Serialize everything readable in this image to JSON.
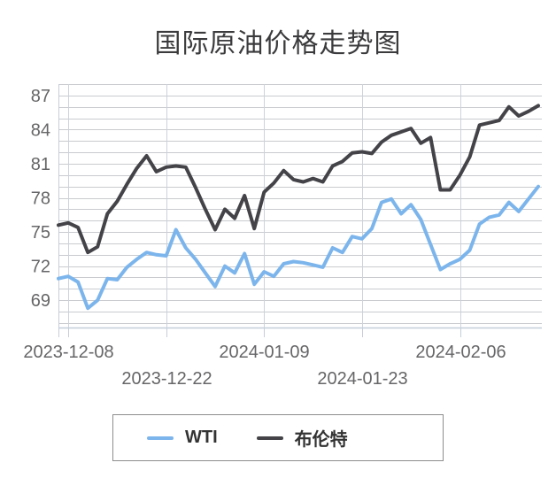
{
  "title": "国际原油价格走势图",
  "chart_data": {
    "type": "line",
    "title": "国际原油价格走势图",
    "x_dates": [
      "2023-12-07",
      "2023-12-08",
      "2023-12-11",
      "2023-12-12",
      "2023-12-13",
      "2023-12-14",
      "2023-12-15",
      "2023-12-18",
      "2023-12-19",
      "2023-12-20",
      "2023-12-21",
      "2023-12-22",
      "2023-12-26",
      "2023-12-27",
      "2023-12-28",
      "2023-12-29",
      "2024-01-02",
      "2024-01-03",
      "2024-01-04",
      "2024-01-05",
      "2024-01-08",
      "2024-01-09",
      "2024-01-10",
      "2024-01-11",
      "2024-01-12",
      "2024-01-15",
      "2024-01-16",
      "2024-01-17",
      "2024-01-18",
      "2024-01-19",
      "2024-01-22",
      "2024-01-23",
      "2024-01-24",
      "2024-01-25",
      "2024-01-26",
      "2024-01-29",
      "2024-01-30",
      "2024-01-31",
      "2024-02-01",
      "2024-02-02",
      "2024-02-05",
      "2024-02-06",
      "2024-02-07",
      "2024-02-08",
      "2024-02-09",
      "2024-02-12",
      "2024-02-13",
      "2024-02-14",
      "2024-02-15",
      "2024-02-16"
    ],
    "series": [
      {
        "name": "WTI",
        "color": "#7cb5ec",
        "values": [
          70.9,
          71.1,
          70.6,
          68.3,
          69.0,
          70.9,
          70.8,
          71.9,
          72.6,
          73.2,
          73.0,
          72.9,
          75.2,
          73.6,
          72.6,
          71.4,
          70.2,
          72.0,
          71.4,
          73.1,
          70.4,
          71.5,
          71.1,
          72.2,
          72.4,
          72.3,
          72.1,
          71.9,
          73.6,
          73.2,
          74.6,
          74.4,
          75.3,
          77.6,
          77.9,
          76.6,
          77.4,
          76.1,
          73.9,
          71.7,
          72.2,
          72.6,
          73.4,
          75.7,
          76.3,
          76.5,
          77.6,
          76.8,
          77.9,
          79.0
        ]
      },
      {
        "name": "布伦特",
        "color": "#434348",
        "values": [
          75.6,
          75.8,
          75.4,
          73.2,
          73.7,
          76.6,
          77.7,
          79.2,
          80.6,
          81.7,
          80.3,
          80.7,
          80.8,
          80.7,
          78.9,
          77.0,
          75.2,
          77.0,
          76.2,
          78.2,
          75.3,
          78.5,
          79.3,
          80.4,
          79.6,
          79.4,
          79.7,
          79.4,
          80.8,
          81.2,
          81.95,
          82.05,
          81.9,
          82.9,
          83.5,
          83.8,
          84.1,
          82.8,
          83.3,
          78.7,
          78.7,
          80.0,
          81.6,
          84.4,
          84.6,
          84.8,
          86.0,
          85.2,
          85.6,
          86.1
        ]
      }
    ],
    "x_ticks": [
      {
        "index": 1,
        "label": "2023-12-08",
        "row": 0
      },
      {
        "index": 11,
        "label": "2023-12-22",
        "row": 1
      },
      {
        "index": 21,
        "label": "2024-01-09",
        "row": 0
      },
      {
        "index": 31,
        "label": "2024-01-23",
        "row": 1
      },
      {
        "index": 41,
        "label": "2024-02-06",
        "row": 0
      }
    ],
    "y_ticks": [
      69,
      72,
      75,
      78,
      81,
      84,
      87
    ],
    "ylim": [
      66.6,
      88.0
    ],
    "minor_y_grid_step": 1,
    "grid": true,
    "legend_position": "bottom-center",
    "line_width": 4,
    "colors": {
      "grid_line": "#c9cbce",
      "vertical_grid_line": "#ccd3db",
      "axis_line": "#c5ced9",
      "tick_label": "#666668",
      "title": "#3b3b3d",
      "legend_border": "#8d8d8d",
      "legend_text": "#333333",
      "background": "#ffffff"
    }
  }
}
